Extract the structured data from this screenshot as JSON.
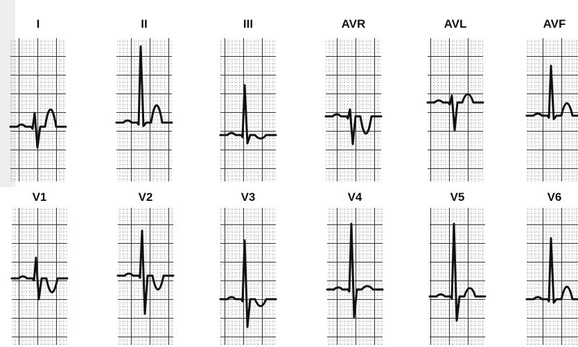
{
  "top_row": [
    "I",
    "II",
    "III",
    "AVR",
    "AVL",
    "AVF"
  ],
  "bottom_row": [
    "V1",
    "V2",
    "V3",
    "V4",
    "V5",
    "V6"
  ]
}
